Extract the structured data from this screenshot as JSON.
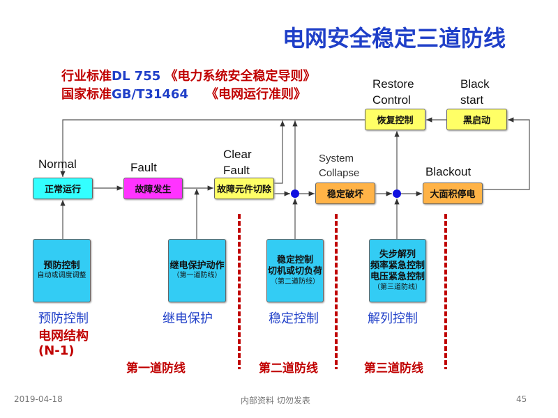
{
  "title": "电网安全稳定三道防线",
  "standards": [
    {
      "prefix": "行业标准",
      "code": "DL 755",
      "name": "《电力系统安全稳定导则》"
    },
    {
      "prefix": "国家标准",
      "code": "GB/T31464",
      "name": "《电网运行准则》"
    }
  ],
  "states": {
    "normal": {
      "en": "Normal",
      "zh": "正常运行"
    },
    "fault": {
      "en": "Fault",
      "zh": "故障发生"
    },
    "clear": {
      "en1": "Clear",
      "en2": "Fault",
      "zh": "故障元件切除"
    },
    "collapse": {
      "en1": "System",
      "en2": "Collapse",
      "zh": "稳定破坏"
    },
    "blackout": {
      "en": "Blackout",
      "zh": "大面积停电"
    },
    "restore": {
      "en1": "Restore",
      "en2": "Control",
      "zh": "恢复控制"
    },
    "blackstart": {
      "en1": "Black",
      "en2": "start",
      "zh": "黑启动"
    }
  },
  "controls": [
    {
      "lines": [
        "预防控制"
      ],
      "sub": "自动或调度调整",
      "label": "预防控制"
    },
    {
      "lines": [
        "继电保护动作"
      ],
      "sub": "（第一道防线）",
      "label": "继电保护"
    },
    {
      "lines": [
        "稳定控制",
        "切机或切负荷"
      ],
      "sub": "（第二道防线）",
      "label": "稳定控制"
    },
    {
      "lines": [
        "失步解列",
        "频率紧急控制",
        "电压紧急控制"
      ],
      "sub": "（第三道防线）",
      "label": "解列控制"
    }
  ],
  "extra_labels": [
    "电网结构",
    "(N-1)"
  ],
  "defense_lines": [
    "第一道防线",
    "第二道防线",
    "第三道防线"
  ],
  "footer": {
    "date": "2019-04-18",
    "note": "内部资料 切勿发表",
    "page": "45"
  },
  "colors": {
    "title": "#1f3fc8",
    "red": "#c00000",
    "cyan": "#33ffff",
    "magenta": "#ff33ff",
    "yellow": "#ffff66",
    "orange": "#ffb347",
    "blue_box": "#33ccf4",
    "node": "#1010e0"
  }
}
